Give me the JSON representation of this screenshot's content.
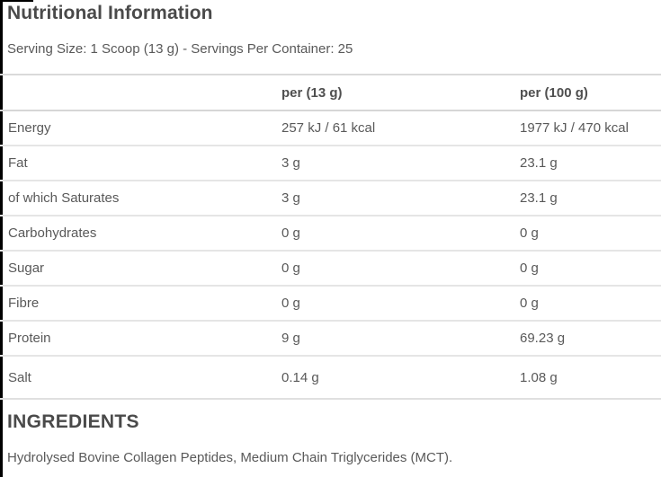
{
  "page": {
    "title": "Nutritional Information",
    "serving_info": "Serving Size: 1 Scoop (13 g) - Servings Per Container: 25"
  },
  "table": {
    "columns": {
      "nutrient": "",
      "per_serving": "per (13 g)",
      "per_100g": "per (100 g)"
    },
    "rows": [
      {
        "label": "Energy",
        "per_serving": "257 kJ / 61 kcal",
        "per_100g": "1977 kJ / 470 kcal"
      },
      {
        "label": "Fat",
        "per_serving": "3 g",
        "per_100g": "23.1 g"
      },
      {
        "label": "of which Saturates",
        "per_serving": "3 g",
        "per_100g": "23.1 g"
      },
      {
        "label": "Carbohydrates",
        "per_serving": "0 g",
        "per_100g": "0 g"
      },
      {
        "label": "Sugar",
        "per_serving": "0 g",
        "per_100g": "0 g"
      },
      {
        "label": "Fibre",
        "per_serving": "0 g",
        "per_100g": "0 g"
      },
      {
        "label": "Protein",
        "per_serving": "9 g",
        "per_100g": "69.23 g"
      },
      {
        "label": "Salt",
        "per_serving": "0.14 g",
        "per_100g": "1.08 g"
      }
    ]
  },
  "ingredients": {
    "heading": "INGREDIENTS",
    "text": "Hydrolysed Bovine Collagen Peptides, Medium Chain Triglycerides (MCT)."
  },
  "colors": {
    "heading_text": "#4a4a4a",
    "body_text": "#595959",
    "divider": "#e5e5e5",
    "edge_line": "#000000",
    "background": "#ffffff"
  }
}
